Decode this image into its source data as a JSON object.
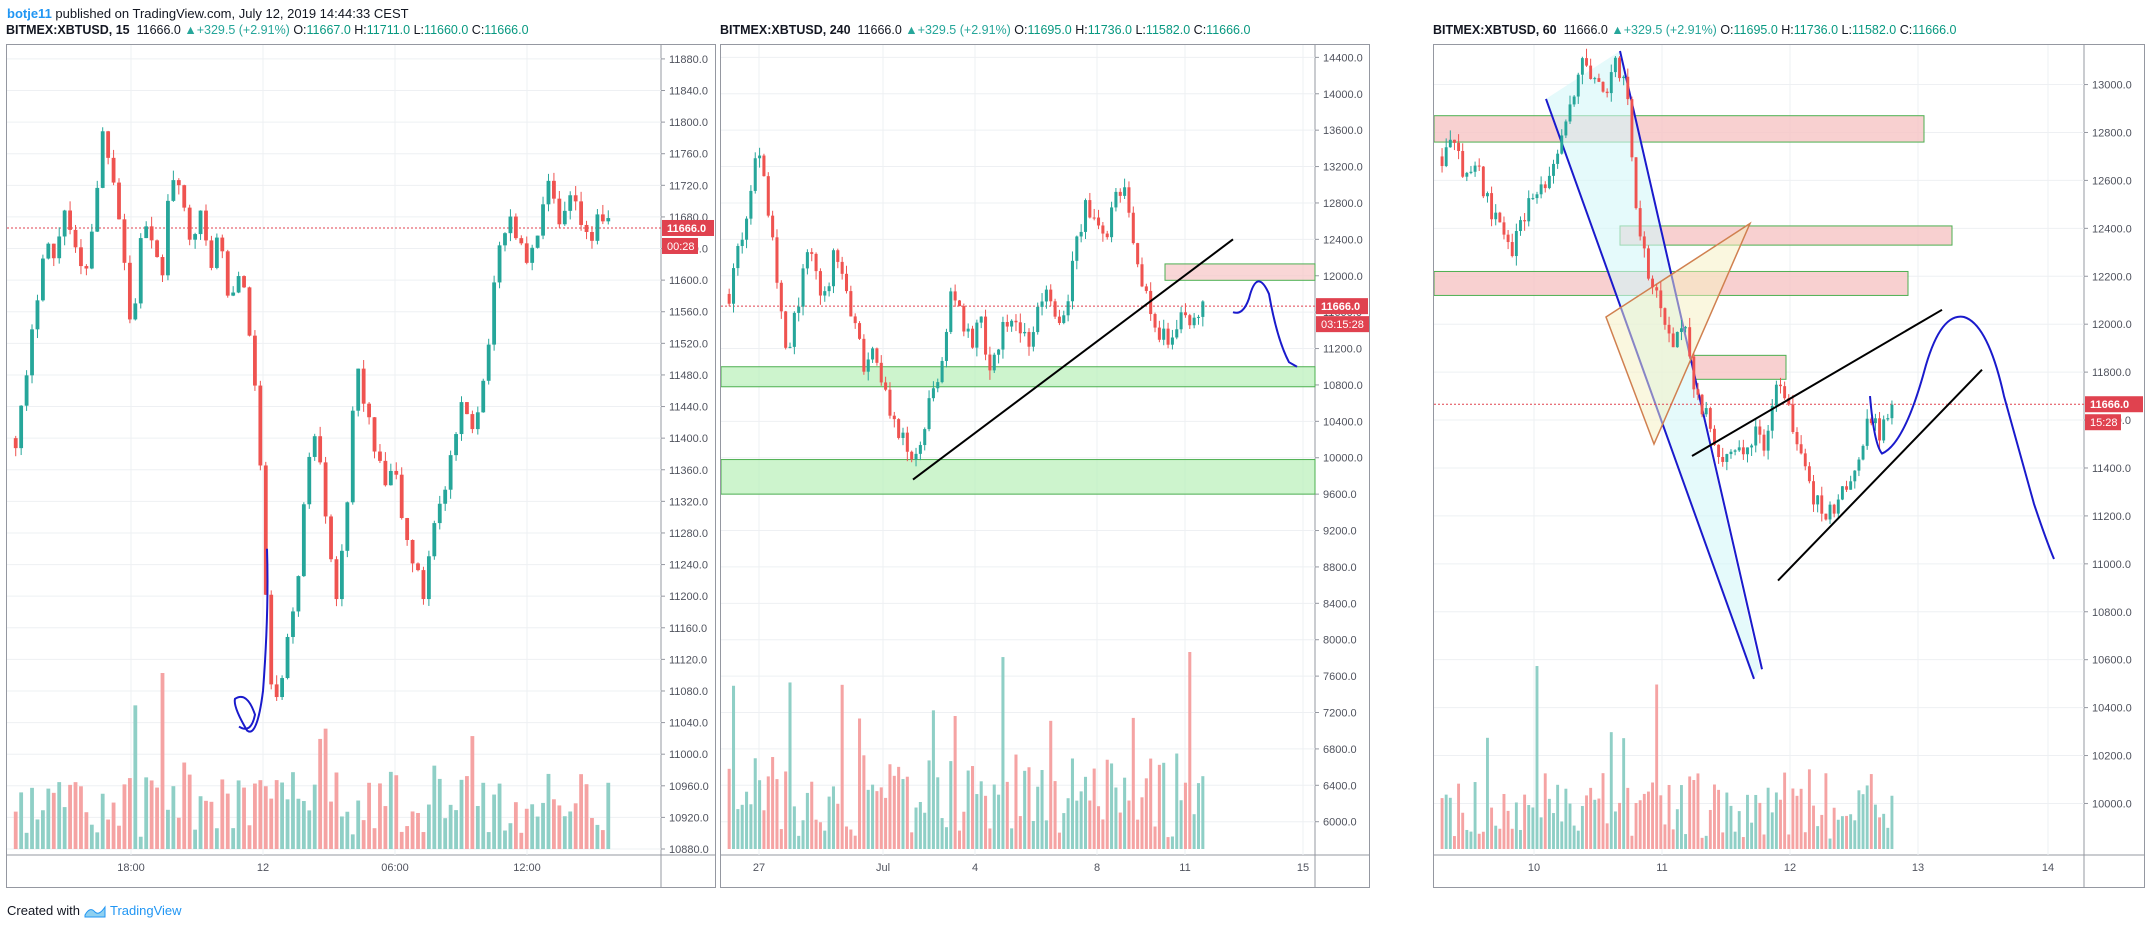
{
  "header": {
    "author": "botje11",
    "text": " published on TradingView.com, July 12, 2019 14:44:33 CEST"
  },
  "footer": {
    "text": "Created with",
    "brand": "TradingView"
  },
  "colors": {
    "up": "#26a69a",
    "down": "#ef5350",
    "up_volume": "#8fcfc6",
    "down_volume": "#f5a3a3",
    "support_zone": "#b8f0b8",
    "resistance_zone": "#f6c4c4",
    "drawing_blue": "#1a1acc",
    "trend_black": "#000000",
    "price_line": "#e0424f",
    "channel_fill": "#d4f6f8",
    "triangle": "#d08050"
  },
  "chart_data": [
    {
      "type": "candlestick",
      "symbol": "BITMEX:XBTUSD",
      "interval": "15",
      "last": "11666.0",
      "change": "+329.5 (+2.91%)",
      "open": "11667.0",
      "high": "11711.0",
      "low": "11660.0",
      "close": "11666.0",
      "price_label": "11666.0",
      "countdown": "00:28",
      "y_ticks": [
        "11880.0",
        "11840.0",
        "11800.0",
        "11760.0",
        "11720.0",
        "11680.0",
        "11640.0",
        "11600.0",
        "11560.0",
        "11520.0",
        "11480.0",
        "11440.0",
        "11400.0",
        "11360.0",
        "11320.0",
        "11280.0",
        "11240.0",
        "11200.0",
        "11160.0",
        "11120.0",
        "11080.0",
        "11040.0",
        "11000.0",
        "10960.0",
        "10920.0",
        "10880.0"
      ],
      "x_ticks": [
        "18:00",
        "12",
        "06:00",
        "12:00"
      ],
      "ylim": [
        10880,
        11890
      ],
      "current_price": 11666,
      "price_path": [
        11400,
        11460,
        11560,
        11660,
        11620,
        11700,
        11640,
        11600,
        11680,
        11790,
        11740,
        11650,
        11520,
        11680,
        11640,
        11600,
        11740,
        11700,
        11660,
        11680,
        11620,
        11660,
        11560,
        11620,
        11540,
        11420,
        11110,
        11060,
        11140,
        11220,
        11360,
        11420,
        11300,
        11200,
        11280,
        11500,
        11440,
        11380,
        11340,
        11360,
        11280,
        11240,
        11200,
        11300,
        11320,
        11380,
        11440,
        11420,
        11460,
        11560,
        11660,
        11680,
        11640,
        11620,
        11680,
        11720,
        11660,
        11700,
        11680,
        11640,
        11690,
        11666
      ]
    },
    {
      "type": "candlestick",
      "symbol": "BITMEX:XBTUSD",
      "interval": "240",
      "last": "11666.0",
      "change": "+329.5 (+2.91%)",
      "open": "11695.0",
      "high": "11736.0",
      "low": "11582.0",
      "close": "11666.0",
      "price_label": "11666.0",
      "countdown": "03:15:28",
      "y_ticks": [
        "14400.0",
        "14000.0",
        "13600.0",
        "13200.0",
        "12800.0",
        "12400.0",
        "12000.0",
        "11600.0",
        "11200.0",
        "10800.0",
        "10400.0",
        "10000.0",
        "9600.0",
        "9200.0",
        "8800.0",
        "8400.0",
        "8000.0",
        "7600.0",
        "7200.0",
        "6800.0",
        "6400.0",
        "6000.0"
      ],
      "x_ticks": [
        "27",
        "Jul",
        "4",
        "8",
        "11",
        "15"
      ],
      "ylim": [
        5700,
        14470
      ],
      "current_price": 11666,
      "price_path": [
        11800,
        12300,
        12700,
        13500,
        12800,
        11900,
        11200,
        11600,
        12300,
        12000,
        11700,
        12400,
        11800,
        11500,
        11000,
        11200,
        10800,
        10400,
        10200,
        10000,
        10300,
        10800,
        11000,
        11800,
        11600,
        11200,
        11500,
        11000,
        11300,
        11600,
        11400,
        11200,
        11600,
        11800,
        11400,
        11700,
        12400,
        12800,
        12600,
        12300,
        13000,
        12900,
        12100,
        11800,
        11500,
        11300,
        11200,
        11600,
        11500,
        11666
      ],
      "zones": [
        [
          11950,
          12130
        ],
        [
          10780,
          11000
        ],
        [
          9600,
          9980
        ]
      ]
    },
    {
      "type": "candlestick",
      "symbol": "BITMEX:XBTUSD",
      "interval": "60",
      "last": "11666.0",
      "change": "+329.5 (+2.91%)",
      "open": "11695.0",
      "high": "11736.0",
      "low": "11582.0",
      "close": "11666.0",
      "price_label": "11666.0",
      "countdown": "15:28",
      "y_ticks": [
        "13000.0",
        "12800.0",
        "12600.0",
        "12400.0",
        "12200.0",
        "12000.0",
        "11800.0",
        "11600.0",
        "11400.0",
        "11200.0",
        "11000.0",
        "10800.0",
        "10600.0",
        "10400.0",
        "10200.0",
        "10000.0"
      ],
      "x_ticks": [
        "10",
        "11",
        "12",
        "13",
        "14"
      ],
      "ylim": [
        9810,
        13140
      ],
      "current_price": 11666,
      "price_path": [
        12700,
        12750,
        12600,
        12650,
        12500,
        12400,
        12300,
        12450,
        12550,
        12600,
        12700,
        12900,
        13100,
        13050,
        12950,
        13100,
        13000,
        12400,
        12200,
        12050,
        11900,
        12000,
        11700,
        11600,
        11400,
        11500,
        11450,
        11550,
        11500,
        11750,
        11650,
        11500,
        11300,
        11200,
        11250,
        11300,
        11450,
        11600,
        11550,
        11666
      ]
    }
  ]
}
